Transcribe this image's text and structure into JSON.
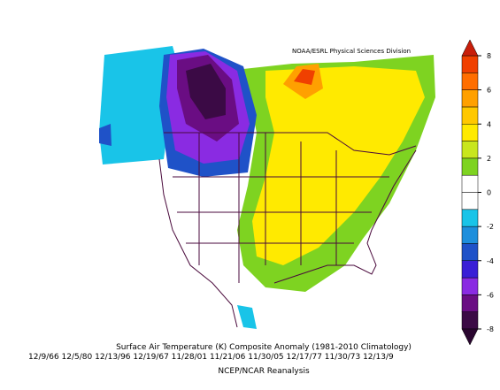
{
  "header": {
    "credit": "NOAA/ESRL Physical Sciences Division"
  },
  "colorbar": {
    "ticks": [
      -8,
      -6,
      -4,
      -2,
      0,
      2,
      4,
      6,
      8
    ],
    "colors": [
      "#3b0a45",
      "#6a0d83",
      "#8a2be2",
      "#3a1fd6",
      "#1f52c8",
      "#1e8fdc",
      "#19c4e8",
      "#ffffff",
      "#ffffff",
      "#7ed321",
      "#c8e61e",
      "#ffea00",
      "#ffc800",
      "#ffa000",
      "#ff6e00",
      "#f04000"
    ],
    "under_color": "#2a0630",
    "over_color": "#c81e0a"
  },
  "caption": {
    "title": "Surface Air Temperature (K) Composite Anomaly (1981-2010 Climatology)",
    "dates": "12/9/66 12/5/80 12/13/96 12/19/67 11/28/01 11/21/06 11/30/05 12/17/77 11/30/73 12/13/9",
    "source": "NCEP/NCAR Reanalysis"
  }
}
